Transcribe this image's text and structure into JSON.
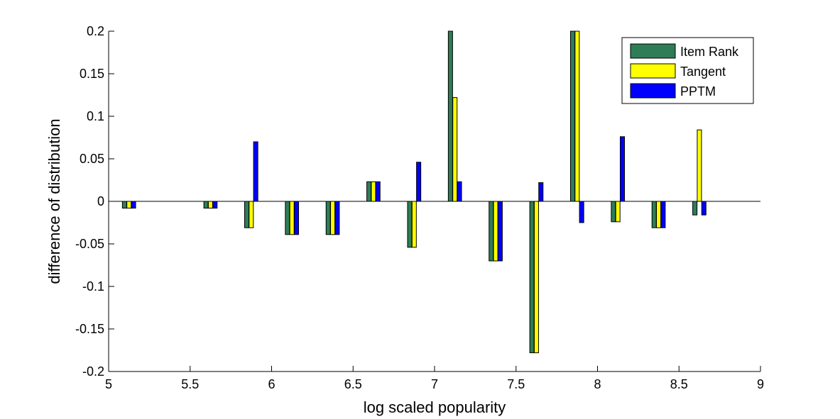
{
  "chart_data": {
    "type": "bar",
    "title": "",
    "xlabel": "log scaled popularity",
    "ylabel": "difference of distribution",
    "xlim": [
      5,
      9
    ],
    "ylim": [
      -0.2,
      0.2
    ],
    "x_ticks": [
      "5",
      "5.5",
      "6",
      "6.5",
      "7",
      "7.5",
      "8",
      "8.5",
      "9"
    ],
    "y_ticks": [
      "-0.2",
      "-0.15",
      "-0.1",
      "-0.05",
      "0",
      "0.05",
      "0.1",
      "0.15",
      "0.2"
    ],
    "grid": false,
    "legend_position": "top-right",
    "x": [
      5.125,
      5.625,
      5.875,
      6.125,
      6.375,
      6.625,
      6.875,
      7.125,
      7.375,
      7.625,
      7.875,
      8.125,
      8.375,
      8.625
    ],
    "series": [
      {
        "name": "Item Rank",
        "color": "#2e7d56",
        "values": [
          -0.008,
          -0.008,
          -0.031,
          -0.039,
          -0.039,
          0.023,
          -0.054,
          0.2,
          -0.07,
          -0.178,
          0.2,
          -0.024,
          -0.031,
          -0.016
        ]
      },
      {
        "name": "Tangent",
        "color": "#ffff00",
        "values": [
          -0.008,
          -0.008,
          -0.031,
          -0.039,
          -0.039,
          0.023,
          -0.054,
          0.122,
          -0.07,
          -0.178,
          0.2,
          -0.024,
          -0.031,
          0.084
        ]
      },
      {
        "name": "PPTM",
        "color": "#0000ff",
        "values": [
          -0.008,
          -0.008,
          0.07,
          -0.039,
          -0.039,
          0.023,
          0.046,
          0.023,
          -0.07,
          0.022,
          -0.025,
          0.076,
          -0.031,
          -0.016
        ]
      }
    ]
  }
}
